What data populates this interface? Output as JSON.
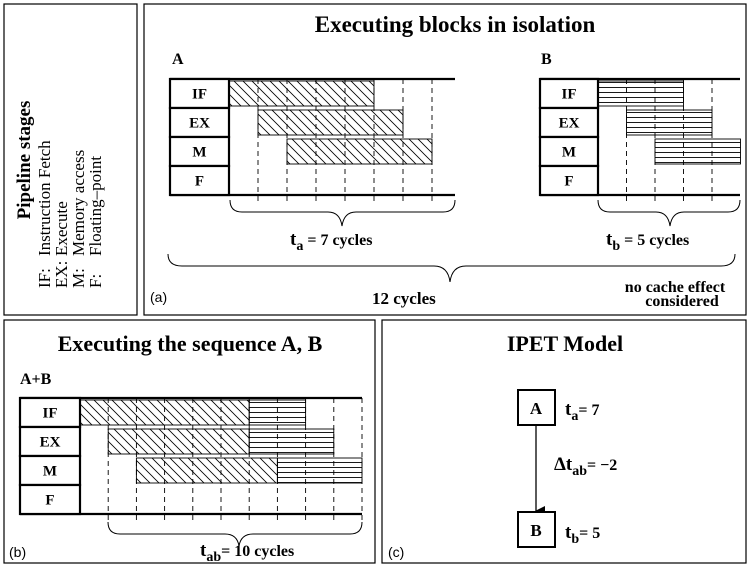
{
  "legend": {
    "title": "Pipeline stages",
    "items": [
      {
        "abbr": "IF:",
        "name": "Instruction Fetch"
      },
      {
        "abbr": "EX:",
        "name": "Execute"
      },
      {
        "abbr": "M:",
        "name": "Memory access"
      },
      {
        "abbr": "F:",
        "name": "Floating–point"
      }
    ]
  },
  "stages": [
    "IF",
    "EX",
    "M",
    "F"
  ],
  "panel_a": {
    "title": "Executing blocks in isolation",
    "label": "(a)",
    "block_a": "A",
    "block_b": "B",
    "time_a": {
      "symbol": "t",
      "sub": "a",
      "text": " = 7 cycles"
    },
    "time_b": {
      "symbol": "t",
      "sub": "b",
      "text": " = 5 cycles"
    },
    "total": "12 cycles",
    "note": [
      "no cache effect",
      "considered"
    ]
  },
  "panel_b": {
    "title": "Executing the sequence A, B",
    "label": "(b)",
    "block": "A+B",
    "time": {
      "symbol": "t",
      "sub": "ab",
      "text": "= 10 cycles"
    }
  },
  "panel_c": {
    "title": "IPET Model",
    "label": "(c)",
    "nodes": [
      {
        "label": "A",
        "time": {
          "symbol": "t",
          "sub": "a",
          "text": "= 7"
        }
      },
      {
        "label": "B",
        "time": {
          "symbol": "t",
          "sub": "b",
          "text": "= 5"
        }
      }
    ],
    "edge": {
      "symbol": "Δt",
      "sub": "ab",
      "text": "= −2"
    }
  }
}
